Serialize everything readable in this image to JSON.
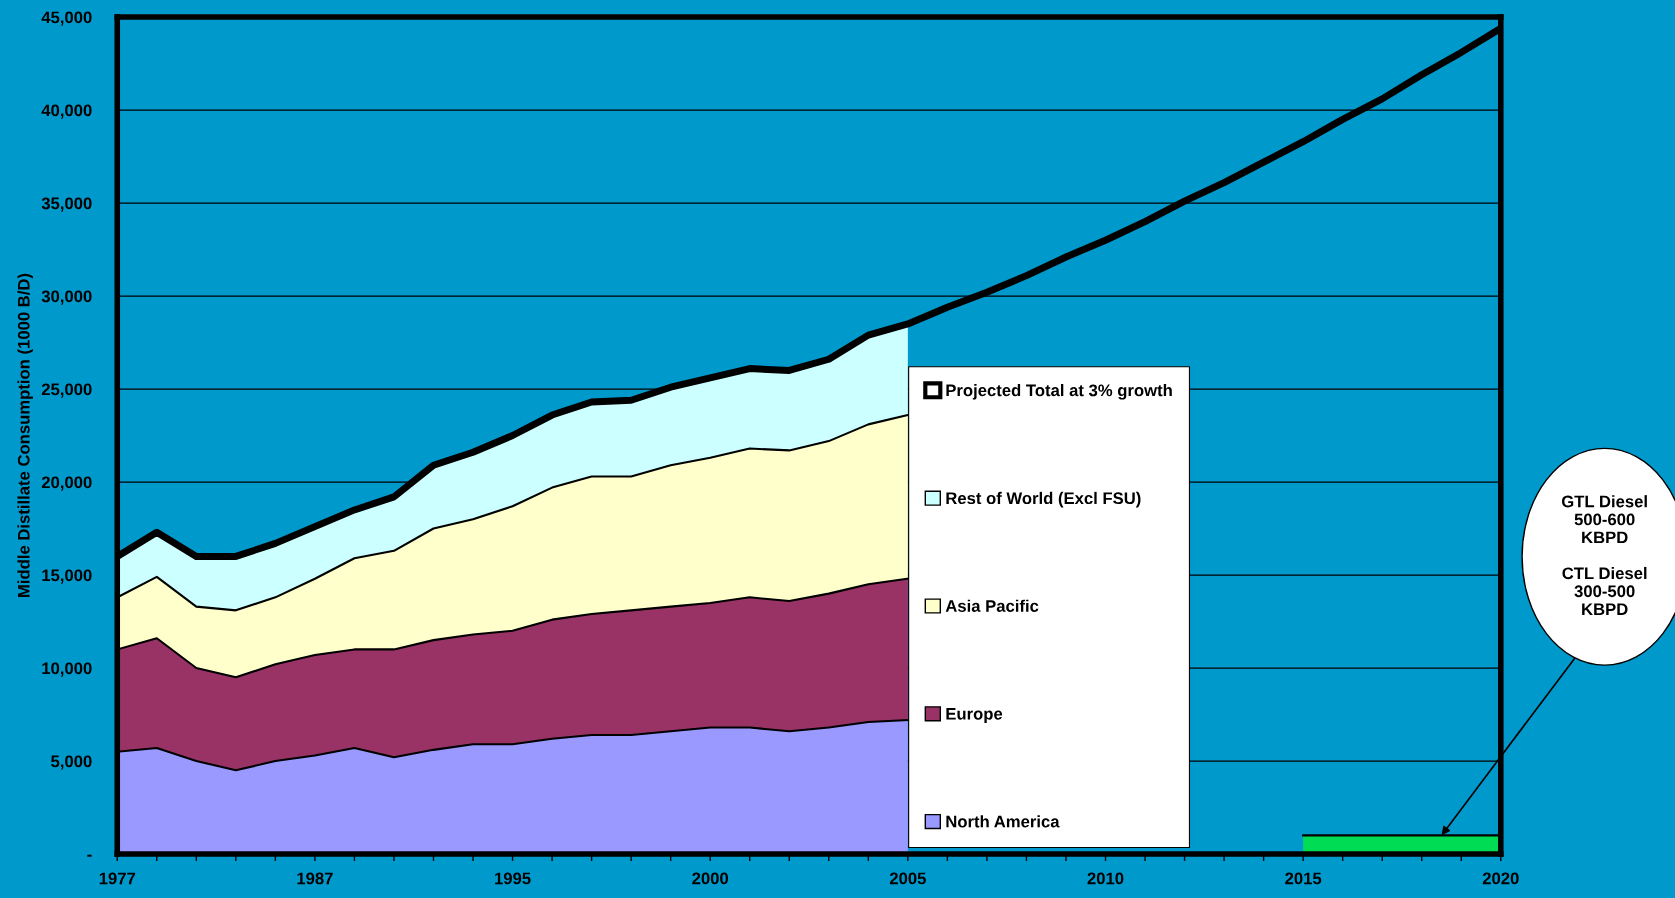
{
  "chart_data": {
    "type": "area",
    "ylabel": "Middle Distillate Consumption (1000 B/D)",
    "categories": [
      "1977",
      null,
      null,
      null,
      null,
      "1987",
      null,
      null,
      null,
      null,
      "1995",
      null,
      null,
      null,
      null,
      "2000",
      null,
      null,
      null,
      null,
      "2005",
      null,
      null,
      null,
      null,
      "2010",
      null,
      null,
      null,
      null,
      "2015",
      null,
      null,
      null,
      null,
      "2020"
    ],
    "stacked": true,
    "series": [
      {
        "name": "North America",
        "color": "#9999ff",
        "values": [
          5500,
          5700,
          5000,
          4500,
          5000,
          5300,
          5700,
          5200,
          5600,
          5900,
          5900,
          6200,
          6400,
          6400,
          6600,
          6800,
          6800,
          6600,
          6800,
          7100,
          7200,
          null,
          null,
          null,
          null,
          null,
          null,
          null,
          null,
          null,
          null,
          null,
          null,
          null,
          null,
          null
        ]
      },
      {
        "name": "Europe",
        "color": "#993366",
        "values": [
          5500,
          5900,
          5000,
          5000,
          5200,
          5400,
          5300,
          5800,
          5900,
          5900,
          6100,
          6400,
          6500,
          6700,
          6700,
          6700,
          7000,
          7000,
          7200,
          7400,
          7600,
          null,
          null,
          null,
          null,
          null,
          null,
          null,
          null,
          null,
          null,
          null,
          null,
          null,
          null,
          null
        ]
      },
      {
        "name": "Asia Pacific",
        "color": "#ffffcc",
        "values": [
          2800,
          3300,
          3300,
          3600,
          3600,
          4100,
          4900,
          5300,
          6000,
          6200,
          6700,
          7100,
          7400,
          7200,
          7600,
          7800,
          8000,
          8100,
          8200,
          8600,
          8800,
          null,
          null,
          null,
          null,
          null,
          null,
          null,
          null,
          null,
          null,
          null,
          null,
          null,
          null,
          null
        ]
      },
      {
        "name": "Rest of World (Excl FSU)",
        "color": "#ccffff",
        "values": [
          2200,
          2400,
          2700,
          2900,
          2900,
          2800,
          2600,
          2900,
          3400,
          3600,
          3800,
          3900,
          4000,
          4100,
          4200,
          4300,
          4300,
          4300,
          4400,
          4800,
          4900,
          null,
          null,
          null,
          null,
          null,
          null,
          null,
          null,
          null,
          null,
          null,
          null,
          null,
          null,
          null
        ]
      },
      {
        "name": "Projected Total at 3% growth",
        "type": "line",
        "color": "#000000",
        "values": [
          16000,
          17300,
          16000,
          16000,
          16700,
          17600,
          18500,
          19200,
          20900,
          21600,
          22500,
          23600,
          24300,
          24400,
          25100,
          25600,
          26100,
          26000,
          26600,
          27900,
          28500,
          29400,
          30200,
          31100,
          32100,
          33000,
          34000,
          35100,
          36100,
          37200,
          38300,
          39500,
          40600,
          41900,
          43100,
          44400
        ]
      },
      {
        "color": "#00dd55",
        "values": [
          null,
          null,
          null,
          null,
          null,
          null,
          null,
          null,
          null,
          null,
          null,
          null,
          null,
          null,
          null,
          null,
          null,
          null,
          null,
          null,
          null,
          null,
          null,
          null,
          null,
          null,
          null,
          null,
          null,
          null,
          1000,
          1000,
          1000,
          1000,
          1000,
          1000
        ]
      }
    ],
    "ylim": [
      0,
      45000
    ],
    "yticks": [
      {
        "value": 0,
        "label": "-"
      },
      {
        "value": 5000,
        "label": "5,000"
      },
      {
        "value": 10000,
        "label": "10,000"
      },
      {
        "value": 15000,
        "label": "15,000"
      },
      {
        "value": 20000,
        "label": "20,000"
      },
      {
        "value": 25000,
        "label": "25,000"
      },
      {
        "value": 30000,
        "label": "30,000"
      },
      {
        "value": 35000,
        "label": "35,000"
      },
      {
        "value": 40000,
        "label": "40,000"
      },
      {
        "value": 45000,
        "label": "45,000"
      }
    ],
    "grid": "y",
    "legend": "center",
    "annotations": [
      "GTL Diesel\n500-600\nKBPD\n\nCTL Diesel\n300-500\nKBPD"
    ]
  }
}
